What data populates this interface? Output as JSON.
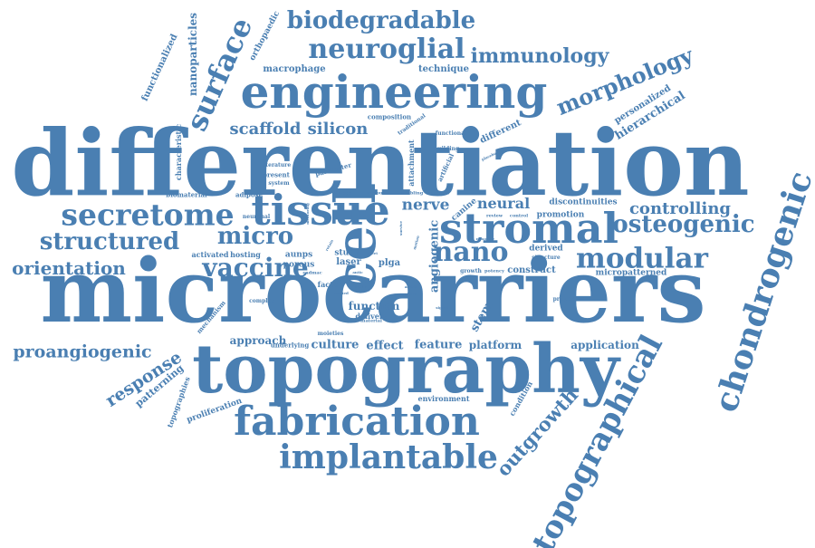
{
  "theme": {
    "word_color": "#4a7fb2",
    "background": "#ffffff"
  },
  "words": [
    "differentiation",
    "microcarriers",
    "topography",
    "cell",
    "engineering",
    "tissue",
    "stromal",
    "fabrication",
    "implantable",
    "chondrogenic",
    "topographical",
    "secretome",
    "modular",
    "nano",
    "osteogenic",
    "neuroglial",
    "biodegradable",
    "structured",
    "vaccine",
    "micro",
    "surface",
    "orientation",
    "morphology",
    "proangiogenic",
    "immunology",
    "response",
    "controlling",
    "outgrowth",
    "scaffold",
    "silicon",
    "neural",
    "nerve",
    "angiogenic",
    "hierarchical",
    "patterning",
    "personalized",
    "culture",
    "feature",
    "effect",
    "platform",
    "application",
    "approach",
    "function",
    "stem",
    "nanoparticles",
    "functionalized",
    "orthopaedic",
    "macrophage",
    "technique",
    "different",
    "canine",
    "construct",
    "proliferation",
    "micropatterned",
    "promotion",
    "discontinuities",
    "derived",
    "delivery",
    "laser",
    "study",
    "plga",
    "aunps",
    "activated",
    "hosting",
    "porous",
    "factor",
    "environment",
    "condition",
    "topographies",
    "mechanism",
    "underlying",
    "moieties",
    "characteristic",
    "traditional",
    "composition",
    "functional",
    "building",
    "attachment",
    "artificial",
    "parameter",
    "present",
    "system",
    "literature",
    "adipose",
    "biomaterial",
    "neuronal",
    "biology",
    "various",
    "enabling",
    "nervous",
    "review",
    "control",
    "growth",
    "potency",
    "structure",
    "properties",
    "complex",
    "material",
    "signal",
    "cadmac",
    "antic",
    "article",
    "regulates",
    "unified",
    "placebo",
    "mentoring",
    "retain",
    "sheet",
    "motion",
    "survive",
    "cattle",
    "nanorule"
  ]
}
